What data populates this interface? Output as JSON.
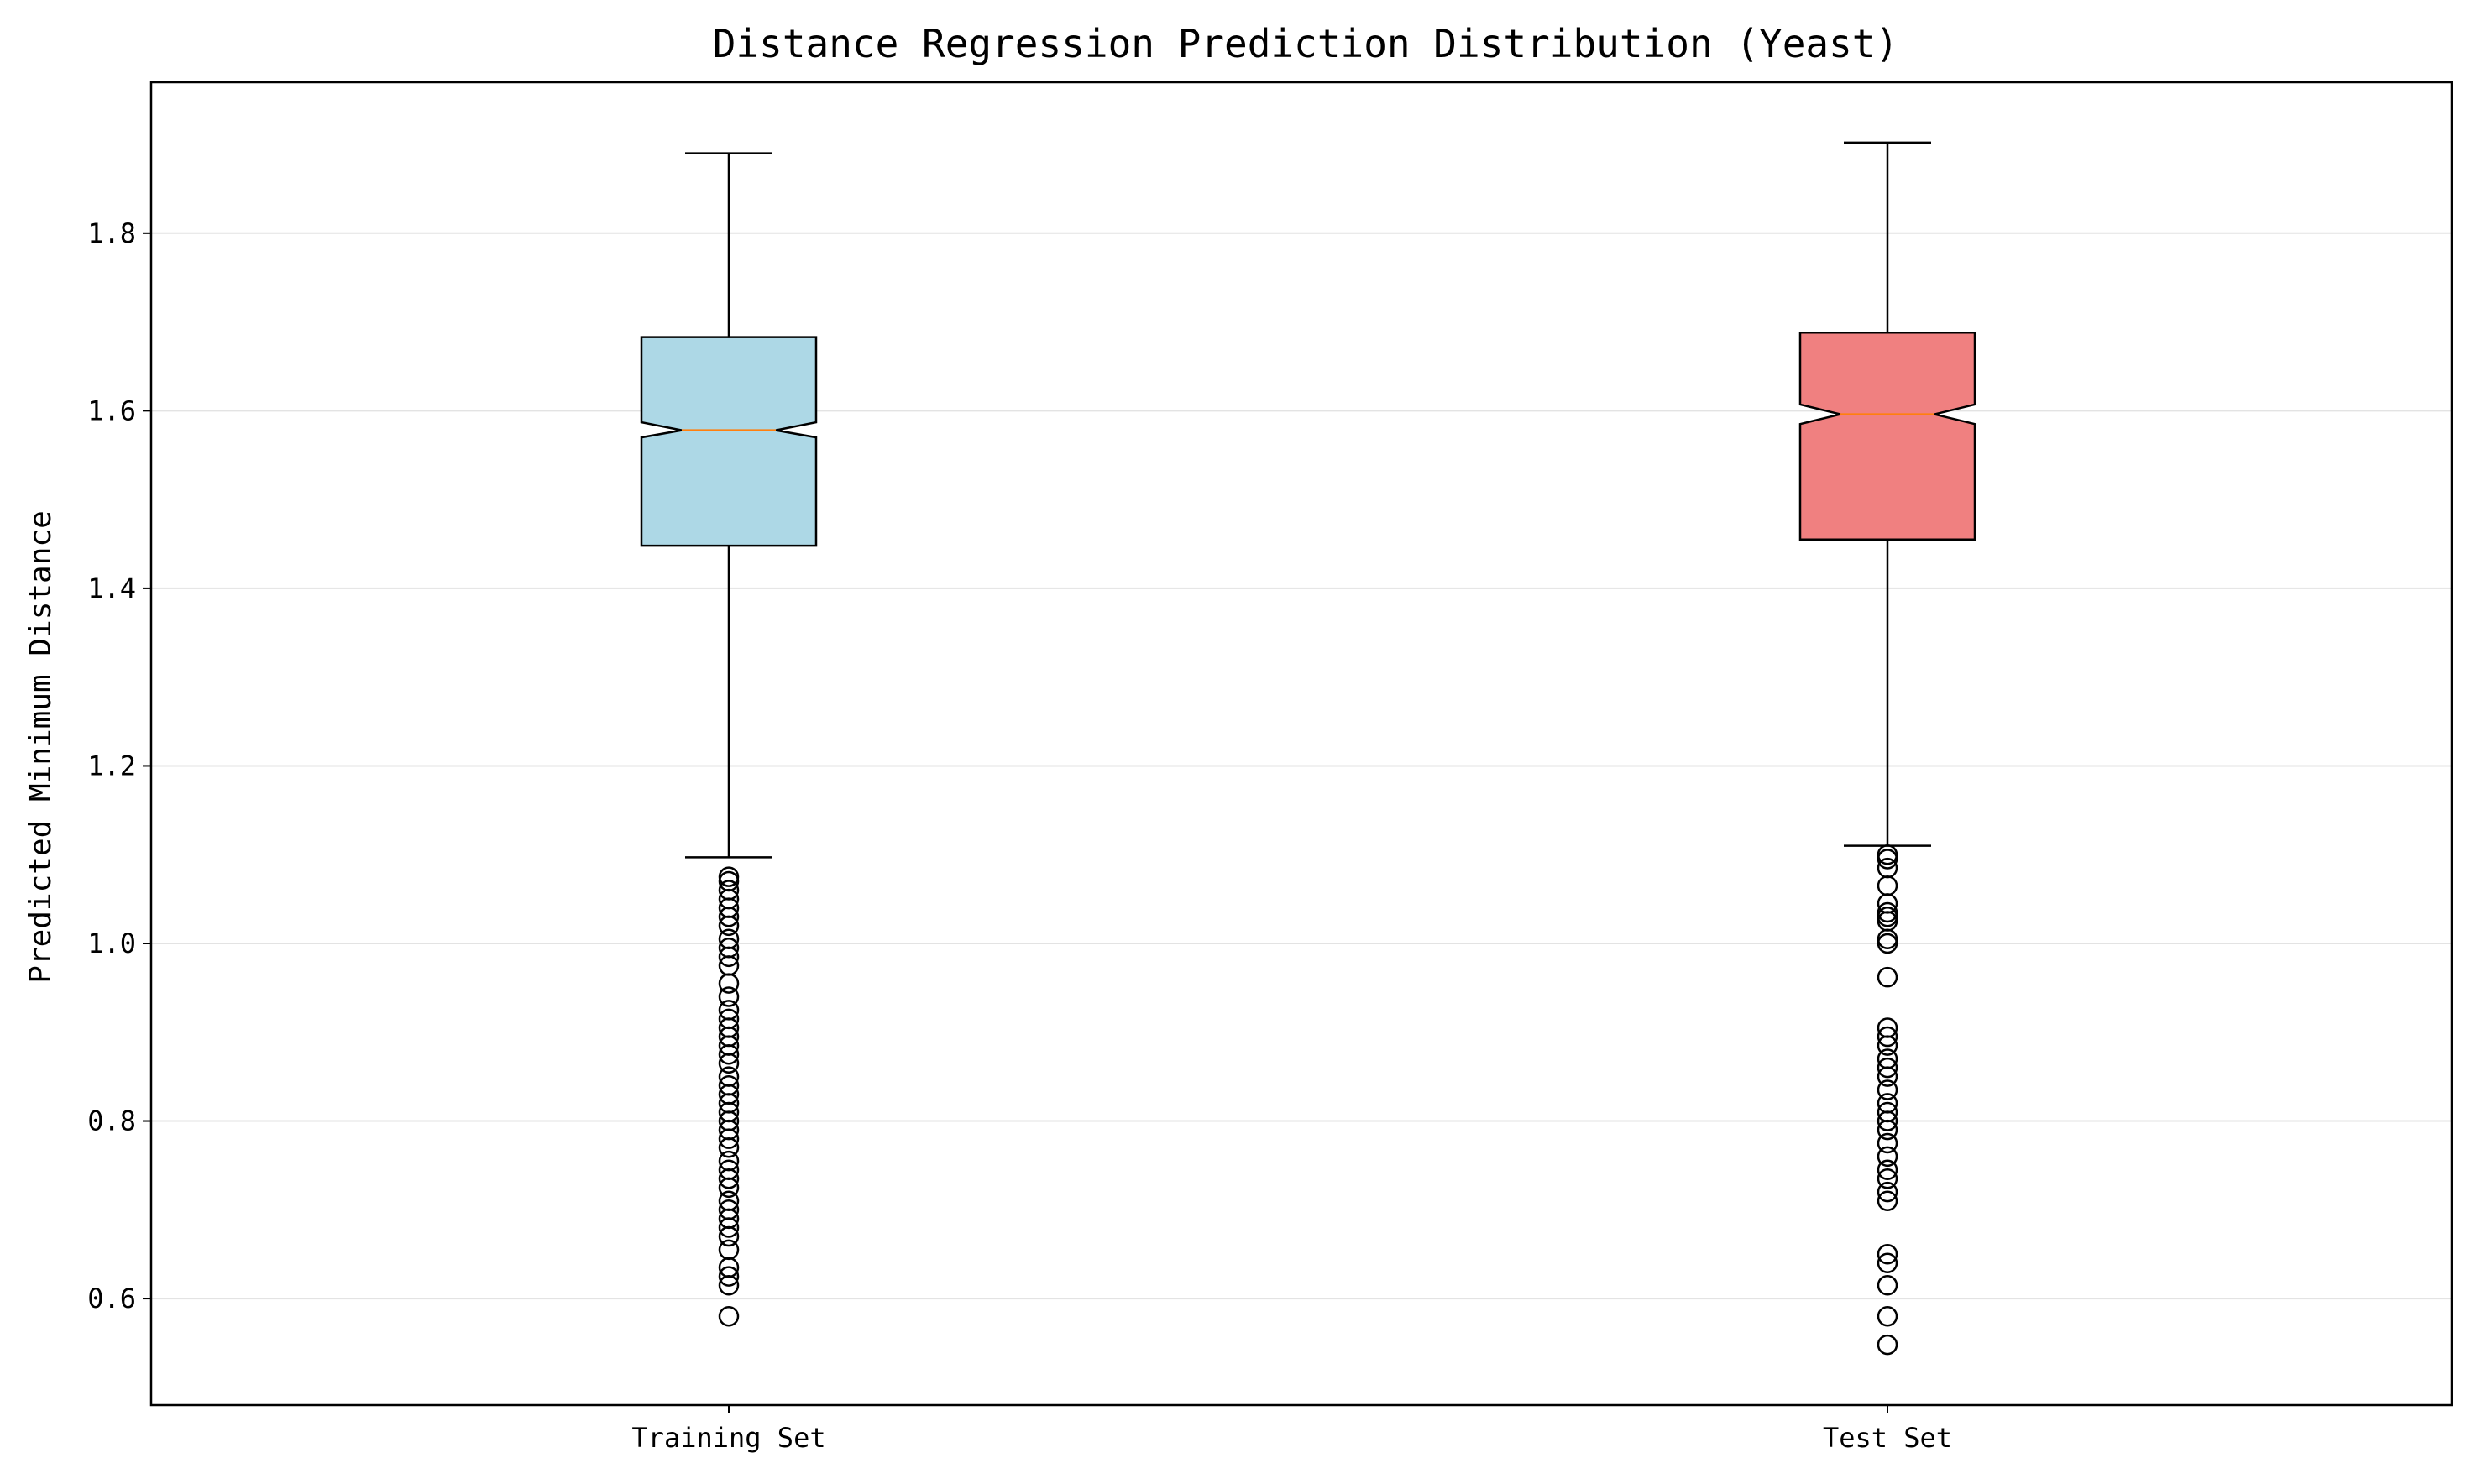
{
  "chart_data": {
    "type": "box",
    "title": "Distance Regression Prediction Distribution (Yeast)",
    "xlabel": "",
    "ylabel": "Predicted Minimum Distance",
    "ylim": [
      0.48,
      1.97
    ],
    "yticks": [
      0.6,
      0.8,
      1.0,
      1.2,
      1.4,
      1.6,
      1.8
    ],
    "grid": "y",
    "notched": true,
    "categories": [
      "Training Set",
      "Test Set"
    ],
    "series": [
      {
        "category": "Training Set",
        "color": "#add8e6",
        "whislo": 1.097,
        "q1": 1.448,
        "median": 1.578,
        "q3": 1.683,
        "whishi": 1.89,
        "notch_low": 1.57,
        "notch_high": 1.587,
        "fliers": [
          1.075,
          1.07,
          1.06,
          1.05,
          1.04,
          1.03,
          1.02,
          1.005,
          0.995,
          0.985,
          0.975,
          0.955,
          0.94,
          0.925,
          0.915,
          0.905,
          0.895,
          0.885,
          0.875,
          0.865,
          0.85,
          0.84,
          0.83,
          0.82,
          0.81,
          0.8,
          0.79,
          0.78,
          0.77,
          0.755,
          0.745,
          0.735,
          0.725,
          0.71,
          0.7,
          0.69,
          0.68,
          0.67,
          0.655,
          0.635,
          0.625,
          0.615,
          0.58
        ]
      },
      {
        "category": "Test Set",
        "color": "#f08080",
        "whislo": 1.11,
        "q1": 1.455,
        "median": 1.596,
        "q3": 1.688,
        "whishi": 1.902,
        "notch_low": 1.585,
        "notch_high": 1.607,
        "fliers": [
          1.1,
          1.095,
          1.085,
          1.065,
          1.045,
          1.035,
          1.03,
          1.025,
          1.005,
          1.0,
          0.962,
          0.905,
          0.895,
          0.885,
          0.87,
          0.86,
          0.85,
          0.835,
          0.82,
          0.81,
          0.8,
          0.79,
          0.775,
          0.76,
          0.745,
          0.735,
          0.72,
          0.71,
          0.65,
          0.64,
          0.615,
          0.58,
          0.548
        ]
      }
    ]
  }
}
